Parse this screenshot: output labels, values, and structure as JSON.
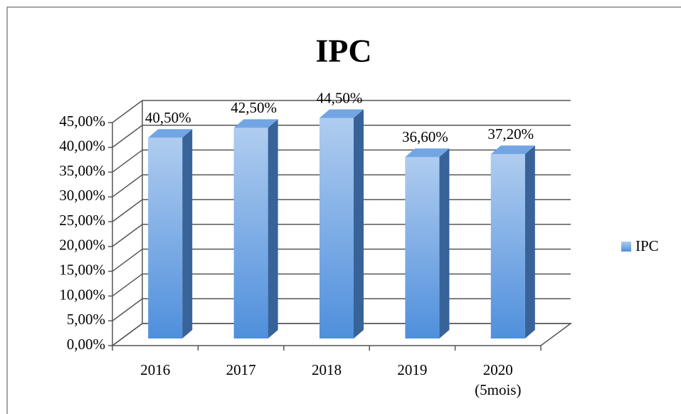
{
  "chart_data": {
    "type": "bar",
    "title": "IPC",
    "categories": [
      "2016",
      "2017",
      "2018",
      "2019",
      "2020 (5mois)"
    ],
    "series": [
      {
        "name": "IPC",
        "color": "#4f8fdc",
        "values": [
          40.5,
          42.5,
          44.5,
          36.6,
          37.2
        ],
        "value_labels": [
          "40,50%",
          "42,50%",
          "44,50%",
          "36,60%",
          "37,20%"
        ]
      }
    ],
    "ylim": [
      0,
      45
    ],
    "yticks": [
      {
        "value": 0,
        "label": "0,00%"
      },
      {
        "value": 5,
        "label": "5,00%"
      },
      {
        "value": 10,
        "label": "10,00%"
      },
      {
        "value": 15,
        "label": "15,00%"
      },
      {
        "value": 20,
        "label": "20,00%"
      },
      {
        "value": 25,
        "label": "25,00%"
      },
      {
        "value": 30,
        "label": "30,00%"
      },
      {
        "value": 35,
        "label": "35,00%"
      },
      {
        "value": 40,
        "label": "40,00%"
      },
      {
        "value": 45,
        "label": "45,00%"
      }
    ],
    "grid": true,
    "legend": "right"
  }
}
